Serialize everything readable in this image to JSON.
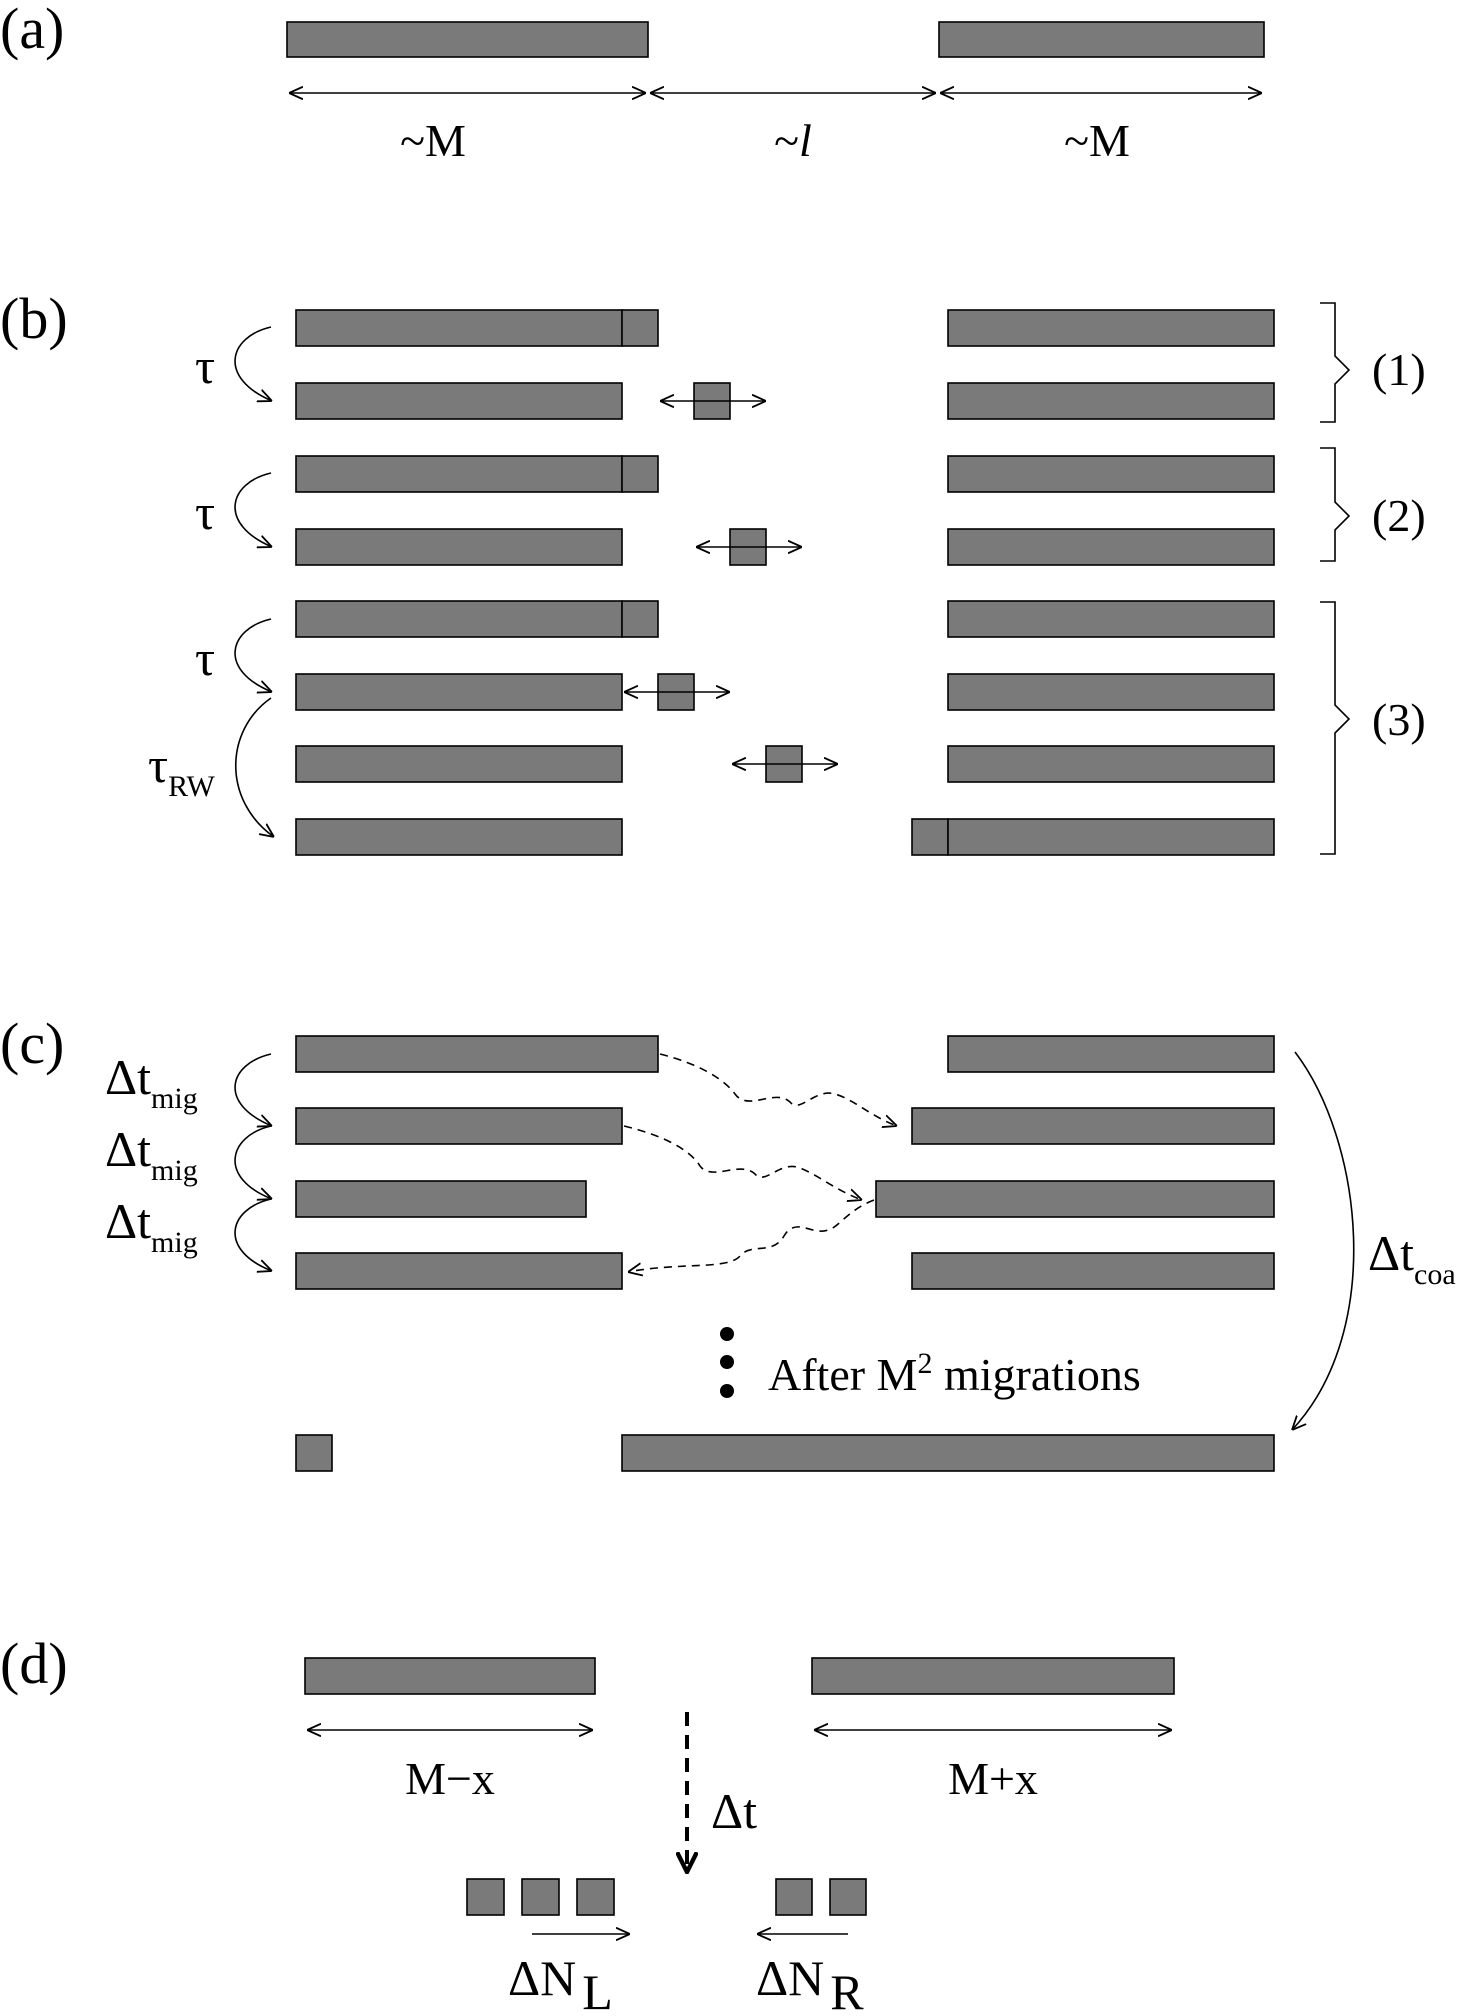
{
  "panels": {
    "a": {
      "label": "(a)",
      "dim_left": "~M",
      "dim_gap_prefix": "~",
      "dim_gap_var": "l",
      "dim_right": "~M"
    },
    "b": {
      "label": "(b)",
      "tau": "τ",
      "tau_rw": "τ",
      "tau_rw_sub": "RW",
      "cases": [
        "(1)",
        "(2)",
        "(3)"
      ]
    },
    "c": {
      "label": "(c)",
      "dt_symbol": "Δt",
      "dt_mig_sub": "mig",
      "dt_coa_sub": "coa",
      "note_prefix": "After M",
      "note_sup": "2",
      "note_suffix": " migrations"
    },
    "d": {
      "label": "(d)",
      "left_length": "M−x",
      "right_length": "M+x",
      "dt": "Δt",
      "dn_symbol": "ΔN",
      "dn_left_sub": "L",
      "dn_right_sub": "R"
    }
  },
  "colors": {
    "bar_fill": "#7a7a7a",
    "line": "#000000",
    "background": "#ffffff"
  }
}
